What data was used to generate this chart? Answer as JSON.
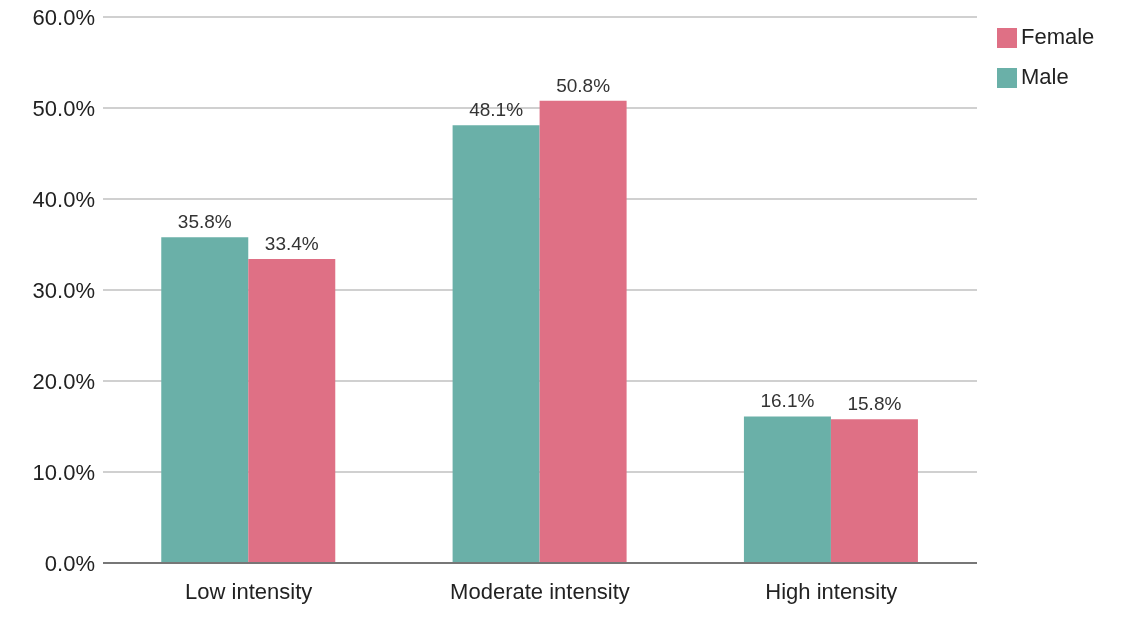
{
  "chart_data": {
    "type": "bar",
    "categories": [
      "Low intensity",
      "Moderate intensity",
      "High intensity"
    ],
    "series": [
      {
        "name": "Male",
        "color": "#6ab0a8",
        "values": [
          35.8,
          48.1,
          16.1
        ],
        "value_labels": [
          "35.8%",
          "48.1%",
          "16.1%"
        ]
      },
      {
        "name": "Female",
        "color": "#df7085",
        "values": [
          33.4,
          50.8,
          15.8
        ],
        "value_labels": [
          "33.4%",
          "50.8%",
          "15.8%"
        ]
      }
    ],
    "ylim": [
      0,
      60
    ],
    "yticks": [
      {
        "value": 0,
        "label": "0.0%"
      },
      {
        "value": 10,
        "label": "10.0%"
      },
      {
        "value": 20,
        "label": "20.0%"
      },
      {
        "value": 30,
        "label": "30.0%"
      },
      {
        "value": 40,
        "label": "40.0%"
      },
      {
        "value": 50,
        "label": "50.0%"
      },
      {
        "value": 60,
        "label": "60.0%"
      }
    ],
    "grid": "y",
    "legend": "top right"
  }
}
